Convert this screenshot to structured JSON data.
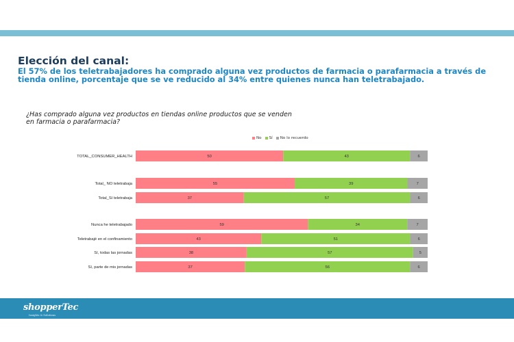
{
  "slide": {
    "title": "Elección del canal:",
    "subtitle": "El 57% de los teletrabajadores ha comprado alguna vez productos de farmacia o parafarmacia a través de tienda online, porcentaje que se ve reducido al 34% entre quienes nunca han teletrabajado.",
    "question": "¿Has comprado alguna vez productos en tiendas online productos que se venden en farmacia o parafarmacia?",
    "logo_text": "shopperTec",
    "logo_tagline": "Insights & Solutions"
  },
  "colors": {
    "no": "#ff7f86",
    "si": "#92d050",
    "no_recuerdo": "#a6a6a6",
    "footer": "#2b8db6",
    "top_band": "#7bbfd5"
  },
  "chart_data": {
    "type": "bar",
    "orientation": "horizontal",
    "stacked": true,
    "categories": [
      "TOTAL_CONSUMER_HEALTH",
      "Total_ NO teletrabaja",
      "Total_Sí teletrabaja",
      "Nunca he teletrabajado",
      "Teletrabajé en el confinamiento",
      "Sí, todas las jornadas",
      "Sí, parte de mis jornadas"
    ],
    "groups": [
      [
        0
      ],
      [
        1,
        2
      ],
      [
        3,
        4,
        5,
        6
      ]
    ],
    "series": [
      {
        "name": "No",
        "values": [
          50,
          55,
          37,
          59,
          43,
          38,
          37
        ]
      },
      {
        "name": "Sí",
        "values": [
          43,
          39,
          57,
          34,
          51,
          57,
          56
        ]
      },
      {
        "name": "No lo recuerdo",
        "values": [
          6,
          7,
          6,
          7,
          6,
          5,
          6
        ]
      }
    ],
    "legend_position": "top",
    "grid": false
  }
}
